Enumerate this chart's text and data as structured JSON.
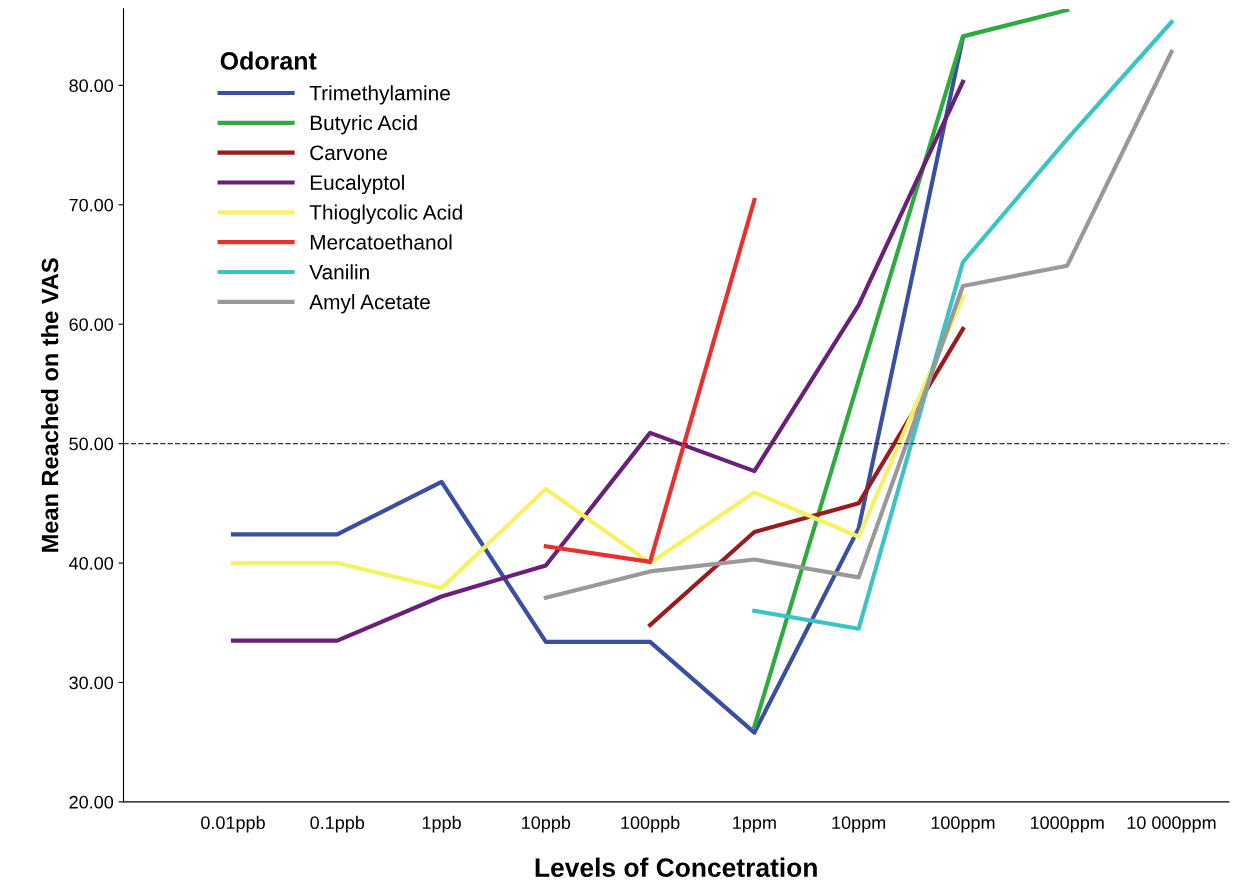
{
  "chart_data": {
    "type": "line",
    "xlabel": "Levels of Concetration",
    "ylabel": "Mean Reached on the VAS",
    "legend_title": "Odorant",
    "legend": "top left",
    "grid": false,
    "marker": "none",
    "line_style": "solid",
    "categories": [
      "0.01ppb",
      "0.1ppb",
      "1ppb",
      "10ppb",
      "100ppb",
      "1ppm",
      "10ppm",
      "100ppm",
      "1000ppm",
      "10 000ppm"
    ],
    "ylim": [
      20,
      86.4
    ],
    "yticks": [
      {
        "value": 20,
        "label": "20.00"
      },
      {
        "value": 30,
        "label": "30.00"
      },
      {
        "value": 40,
        "label": "40.00"
      },
      {
        "value": 50,
        "label": "50.00"
      },
      {
        "value": 60,
        "label": "60.00"
      },
      {
        "value": 70,
        "label": "70.00"
      },
      {
        "value": 80,
        "label": "80.00"
      }
    ],
    "ref_lines": [
      {
        "axis": "y",
        "value": 50,
        "color": "#333333",
        "line_style": "dashed"
      }
    ],
    "series": [
      {
        "name": "Trimethylamine",
        "color": "#3a4fa0",
        "values": [
          42.4,
          42.4,
          46.8,
          33.4,
          33.4,
          25.8,
          42.9,
          84,
          null,
          null
        ]
      },
      {
        "name": "Butyric Acid",
        "color": "#2eaa3e",
        "values": [
          null,
          null,
          null,
          null,
          null,
          26.3,
          55.3,
          84.1,
          86.3,
          null
        ]
      },
      {
        "name": "Carvone",
        "color": "#9a1a1e",
        "values": [
          null,
          null,
          null,
          null,
          34.8,
          42.6,
          45,
          59.6,
          null,
          null
        ]
      },
      {
        "name": "Eucalyptol",
        "color": "#6a1f78",
        "values": [
          33.5,
          33.5,
          37.2,
          39.8,
          50.9,
          47.7,
          61.6,
          80.3,
          null,
          null
        ]
      },
      {
        "name": "Thioglycolic Acid",
        "color": "#f4f266",
        "values": [
          40,
          40,
          37.9,
          46.2,
          40,
          45.9,
          42.2,
          62.3,
          null,
          null
        ]
      },
      {
        "name": "Mercatoethanol",
        "color": "#e8302f",
        "values": [
          null,
          null,
          null,
          41.4,
          40.1,
          70.4,
          null,
          null,
          null,
          null
        ]
      },
      {
        "name": "Vanilin",
        "color": "#3cc4c4",
        "values": [
          null,
          null,
          null,
          null,
          null,
          36,
          34.5,
          65.2,
          75.5,
          85.3
        ]
      },
      {
        "name": "Amyl Acetate",
        "color": "#999999",
        "values": [
          null,
          null,
          null,
          37.1,
          39.3,
          40.3,
          38.8,
          63.2,
          64.9,
          82.8
        ]
      }
    ]
  }
}
